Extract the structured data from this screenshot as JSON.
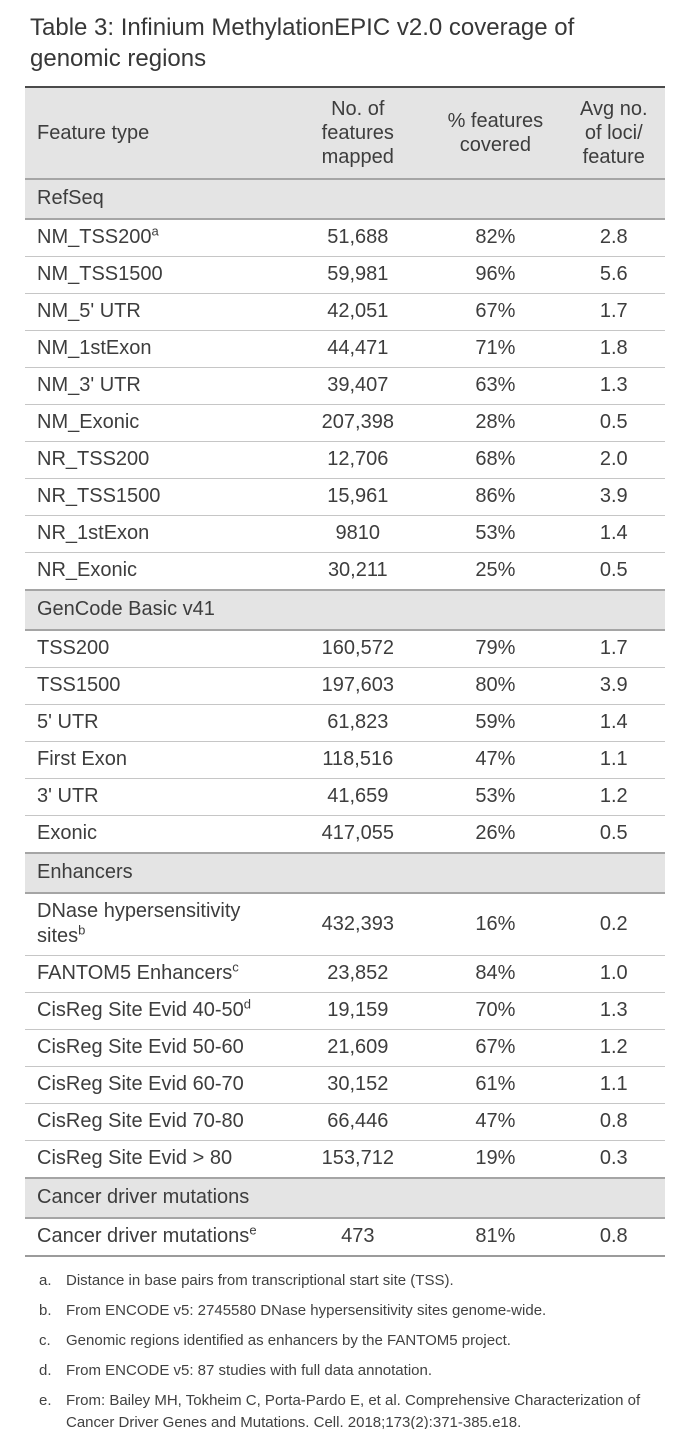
{
  "title": "Table 3: Infinium MethylationEPIC v2.0 coverage of genomic regions",
  "colors": {
    "section_header_bg": "#e4e4e4",
    "text": "#3d3d3d",
    "rule_dark": "#4b4b4b",
    "rule_medium": "#9b9b9b",
    "row_divider": "#c6c6c6"
  },
  "columns": [
    "Feature type",
    "No. of\nfeatures\nmapped",
    "% features\ncovered",
    "Avg no.\nof loci/\nfeature"
  ],
  "sections": [
    {
      "name": "RefSeq",
      "rows": [
        {
          "feature": "NM_TSS200",
          "sup": "a",
          "mapped": "51,688",
          "covered": "82%",
          "avg": "2.8"
        },
        {
          "feature": "NM_TSS1500",
          "sup": "",
          "mapped": "59,981",
          "covered": "96%",
          "avg": "5.6"
        },
        {
          "feature": "NM_5' UTR",
          "sup": "",
          "mapped": "42,051",
          "covered": "67%",
          "avg": "1.7"
        },
        {
          "feature": "NM_1stExon",
          "sup": "",
          "mapped": "44,471",
          "covered": "71%",
          "avg": "1.8"
        },
        {
          "feature": "NM_3' UTR",
          "sup": "",
          "mapped": "39,407",
          "covered": "63%",
          "avg": "1.3"
        },
        {
          "feature": "NM_Exonic",
          "sup": "",
          "mapped": "207,398",
          "covered": "28%",
          "avg": "0.5"
        },
        {
          "feature": "NR_TSS200",
          "sup": "",
          "mapped": "12,706",
          "covered": "68%",
          "avg": "2.0"
        },
        {
          "feature": "NR_TSS1500",
          "sup": "",
          "mapped": "15,961",
          "covered": "86%",
          "avg": "3.9"
        },
        {
          "feature": "NR_1stExon",
          "sup": "",
          "mapped": "9810",
          "covered": "53%",
          "avg": "1.4"
        },
        {
          "feature": "NR_Exonic",
          "sup": "",
          "mapped": "30,211",
          "covered": "25%",
          "avg": "0.5"
        }
      ]
    },
    {
      "name": "GenCode Basic v41",
      "rows": [
        {
          "feature": "TSS200",
          "sup": "",
          "mapped": "160,572",
          "covered": "79%",
          "avg": "1.7"
        },
        {
          "feature": "TSS1500",
          "sup": "",
          "mapped": "197,603",
          "covered": "80%",
          "avg": "3.9"
        },
        {
          "feature": "5' UTR",
          "sup": "",
          "mapped": "61,823",
          "covered": "59%",
          "avg": "1.4"
        },
        {
          "feature": "First Exon",
          "sup": "",
          "mapped": "118,516",
          "covered": "47%",
          "avg": "1.1"
        },
        {
          "feature": "3' UTR",
          "sup": "",
          "mapped": "41,659",
          "covered": "53%",
          "avg": "1.2"
        },
        {
          "feature": "Exonic",
          "sup": "",
          "mapped": "417,055",
          "covered": "26%",
          "avg": "0.5"
        }
      ]
    },
    {
      "name": "Enhancers",
      "rows": [
        {
          "feature": "DNase hypersensitivity sites",
          "sup": "b",
          "mapped": "432,393",
          "covered": "16%",
          "avg": "0.2"
        },
        {
          "feature": "FANTOM5 Enhancers",
          "sup": "c",
          "mapped": "23,852",
          "covered": "84%",
          "avg": "1.0"
        },
        {
          "feature": "CisReg Site Evid 40-50",
          "sup": "d",
          "mapped": "19,159",
          "covered": "70%",
          "avg": "1.3"
        },
        {
          "feature": "CisReg Site Evid 50-60",
          "sup": "",
          "mapped": "21,609",
          "covered": "67%",
          "avg": "1.2"
        },
        {
          "feature": "CisReg Site Evid 60-70",
          "sup": "",
          "mapped": "30,152",
          "covered": "61%",
          "avg": "1.1"
        },
        {
          "feature": "CisReg Site Evid 70-80",
          "sup": "",
          "mapped": "66,446",
          "covered": "47%",
          "avg": "0.8"
        },
        {
          "feature": "CisReg Site Evid > 80",
          "sup": "",
          "mapped": "153,712",
          "covered": "19%",
          "avg": "0.3"
        }
      ]
    },
    {
      "name": "Cancer driver mutations",
      "rows": [
        {
          "feature": "Cancer driver mutations",
          "sup": "e",
          "mapped": "473",
          "covered": "81%",
          "avg": "0.8"
        }
      ]
    }
  ],
  "footnotes": [
    {
      "marker": "a.",
      "text": "Distance in base pairs from transcriptional start site (TSS)."
    },
    {
      "marker": "b.",
      "text": "From ENCODE v5: 2745580 DNase hypersensitivity sites genome-wide."
    },
    {
      "marker": "c.",
      "text": "Genomic regions identified as enhancers by the FANTOM5 project."
    },
    {
      "marker": "d.",
      "text": "From ENCODE v5: 87 studies with full data annotation."
    },
    {
      "marker": "e.",
      "text": "From: Bailey MH, Tokheim C, Porta-Pardo E, et al. Comprehensive Characterization of Cancer Driver Genes and Mutations. Cell. 2018;173(2):371-385.e18."
    }
  ]
}
